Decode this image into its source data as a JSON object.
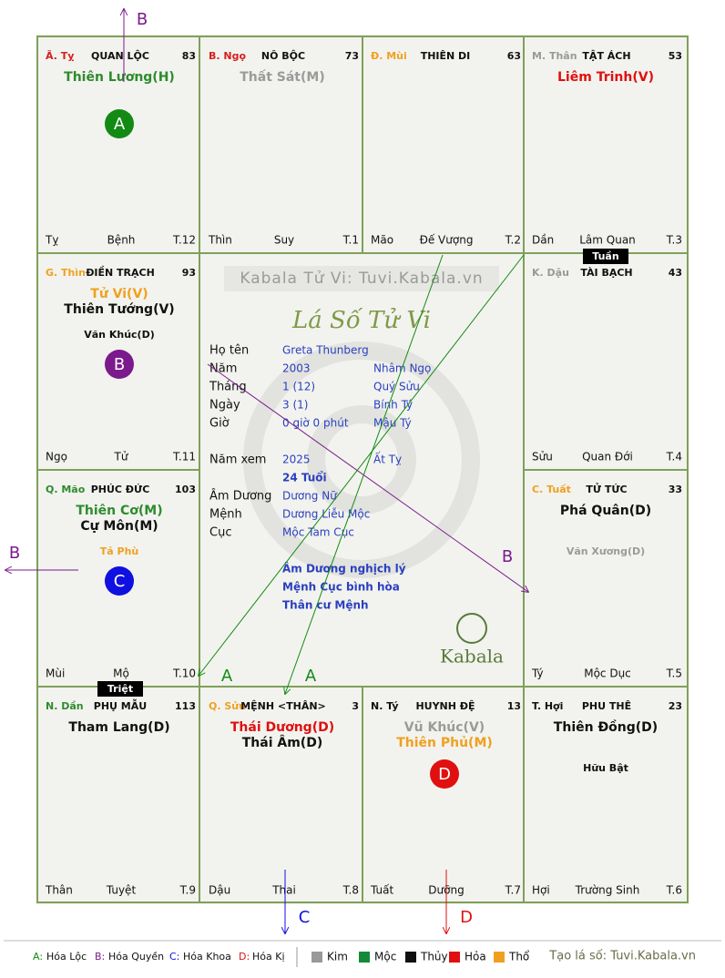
{
  "header": {
    "watermark": "Kabala Tử Vi: Tuvi.Kabala.vn",
    "title": "Lá Số Tử Vi",
    "logo": "Kabala"
  },
  "palaces": [
    {
      "tag": "Ã. Tỵ",
      "tag_color": "#d62020",
      "name": "QUAN LỘC",
      "score": "83",
      "stars": [
        {
          "text": "Thiên Lương(H)",
          "color": "#2e8b2e"
        }
      ],
      "badge": {
        "letter": "A",
        "color": "#138a13"
      },
      "branch": "Tỵ",
      "stage": "Bệnh",
      "age": "T.12"
    },
    {
      "tag": "B. Ngọ",
      "tag_color": "#d62020",
      "name": "NÔ BỘC",
      "score": "73",
      "stars": [
        {
          "text": "Thất Sát(M)",
          "color": "#9a9a9a"
        }
      ],
      "branch": "Thìn",
      "stage": "Suy",
      "age": "T.1"
    },
    {
      "tag": "Đ. Mùi",
      "tag_color": "#f0a020",
      "name": "THIÊN DI",
      "score": "63",
      "branch": "Mão",
      "stage": "Đế Vượng",
      "age": "T.2"
    },
    {
      "tag": "M. Thân",
      "tag_color": "#999999",
      "name": "TẬT ÁCH",
      "score": "53",
      "stars": [
        {
          "text": "Liêm Trinh(V)",
          "color": "#e01010"
        }
      ],
      "branch": "Dần",
      "stage": "Lâm Quan",
      "age": "T.3"
    },
    {
      "tag": "G. Thìn",
      "tag_color": "#f0a020",
      "name": "ĐIỀN TRẠCH",
      "score": "93",
      "stars": [
        {
          "text": "Tử Vi(V)",
          "color": "#f0a020"
        },
        {
          "text": "Thiên Tướng(V)",
          "color": "#111111"
        }
      ],
      "minors": [
        {
          "text": "Văn Khúc(D)",
          "color": "#111111"
        }
      ],
      "badge": {
        "letter": "B",
        "color": "#7b1a8c"
      },
      "branch": "Ngọ",
      "stage": "Tử",
      "age": "T.11"
    },
    {
      "tag": "K. Dậu",
      "tag_color": "#999999",
      "name": "TÀI BẠCH",
      "score": "43",
      "branch": "Sửu",
      "stage": "Quan Đới",
      "age": "T.4"
    },
    {
      "tag": "Q. Mão",
      "tag_color": "#2e8b2e",
      "name": "PHÚC ĐỨC",
      "score": "103",
      "stars": [
        {
          "text": "Thiên Cơ(M)",
          "color": "#2e8b2e"
        },
        {
          "text": "Cự Môn(M)",
          "color": "#111111"
        }
      ],
      "minors": [
        {
          "text": "Tả Phù",
          "color": "#f0a020"
        }
      ],
      "badge": {
        "letter": "C",
        "color": "#1010e0"
      },
      "branch": "Mùi",
      "stage": "Mộ",
      "age": "T.10"
    },
    {
      "tag": "C. Tuất",
      "tag_color": "#f0a020",
      "name": "TỬ TỨC",
      "score": "33",
      "stars": [
        {
          "text": "Phá Quân(D)",
          "color": "#111111"
        }
      ],
      "minors": [
        {
          "text": "Văn Xương(D)",
          "color": "#9a9a9a"
        }
      ],
      "branch": "Tý",
      "stage": "Mộc Dục",
      "age": "T.5"
    },
    {
      "tag": "N. Dần",
      "tag_color": "#2e8b2e",
      "name": "PHỤ MẪU",
      "score": "113",
      "stars": [
        {
          "text": "Tham Lang(D)",
          "color": "#111111"
        }
      ],
      "branch": "Thân",
      "stage": "Tuyệt",
      "age": "T.9"
    },
    {
      "tag": "Q. Sửu",
      "tag_color": "#f0a020",
      "name": "MỆNH <THÂN>",
      "score": "3",
      "stars": [
        {
          "text": "Thái Dương(D)",
          "color": "#e01010"
        },
        {
          "text": "Thái Âm(D)",
          "color": "#111111"
        }
      ],
      "branch": "Dậu",
      "stage": "Thai",
      "age": "T.8"
    },
    {
      "tag": "N. Tý",
      "tag_color": "#111111",
      "name": "HUYNH ĐỆ",
      "score": "13",
      "stars": [
        {
          "text": "Vũ Khúc(V)",
          "color": "#9a9a9a"
        },
        {
          "text": "Thiên Phủ(M)",
          "color": "#f0a020"
        }
      ],
      "badge": {
        "letter": "D",
        "color": "#e01010"
      },
      "branch": "Tuất",
      "stage": "Dưỡng",
      "age": "T.7"
    },
    {
      "tag": "T. Hợi",
      "tag_color": "#111111",
      "name": "PHU THÊ",
      "score": "23",
      "stars": [
        {
          "text": "Thiên Đồng(D)",
          "color": "#111111"
        }
      ],
      "minors": [
        {
          "text": "Hữu Bật",
          "color": "#111111"
        }
      ],
      "branch": "Hợi",
      "stage": "Trường Sinh",
      "age": "T.6"
    }
  ],
  "info": [
    {
      "label": "Họ tên",
      "value": "Greta Thunberg"
    },
    {
      "label": "Năm",
      "value": "2003",
      "extra": "Nhâm Ngọ"
    },
    {
      "label": "Tháng",
      "value": "1  (12)",
      "extra": "Quý Sửu"
    },
    {
      "label": "Ngày",
      "value": "3  (1)",
      "extra": "Bính Tý"
    },
    {
      "label": "Giờ",
      "value": "0 giờ 0 phút",
      "extra": "Mậu Tý"
    },
    {
      "label": "Năm xem",
      "value": "2025",
      "extra": "Ất Tỵ"
    },
    {
      "value": "24 Tuổi",
      "bold": true
    },
    {
      "label": "Âm Dương",
      "value": "Dương Nữ"
    },
    {
      "label": "Mệnh",
      "value": "Dương Liễu Mộc"
    },
    {
      "label": "Cục",
      "value": "Mộc Tam Cục"
    }
  ],
  "notes": [
    "Âm Dương nghịch lý",
    "Mệnh Cục bình hòa",
    "Thân cư Mệnh"
  ],
  "markers": [
    "Tuần",
    "Triệt"
  ],
  "arrows": [
    {
      "label": "B",
      "color": "#7b1a8c"
    },
    {
      "label": "B",
      "color": "#7b1a8c"
    },
    {
      "label": "B",
      "color": "#7b1a8c"
    },
    {
      "label": "A",
      "color": "#138a13"
    },
    {
      "label": "A",
      "color": "#138a13"
    },
    {
      "label": "C",
      "color": "#1010e0"
    },
    {
      "label": "D",
      "color": "#e01010"
    }
  ],
  "legend": {
    "transforms": [
      {
        "key": "A:",
        "text": "Hóa Lộc",
        "color": "#138a13"
      },
      {
        "key": "B:",
        "text": "Hóa Quyền",
        "color": "#7b1a8c"
      },
      {
        "key": "C:",
        "text": "Hóa Khoa",
        "color": "#1010e0"
      },
      {
        "key": "D:",
        "text": "Hóa Kị",
        "color": "#e01010"
      }
    ],
    "elements": [
      {
        "name": "Kim",
        "color": "#999999"
      },
      {
        "name": "Mộc",
        "color": "#138a3a"
      },
      {
        "name": "Thủy",
        "color": "#111111"
      },
      {
        "name": "Hỏa",
        "color": "#e01010"
      },
      {
        "name": "Thổ",
        "color": "#f0a020"
      }
    ],
    "site": "Tạo lá số: Tuvi.Kabala.vn"
  }
}
